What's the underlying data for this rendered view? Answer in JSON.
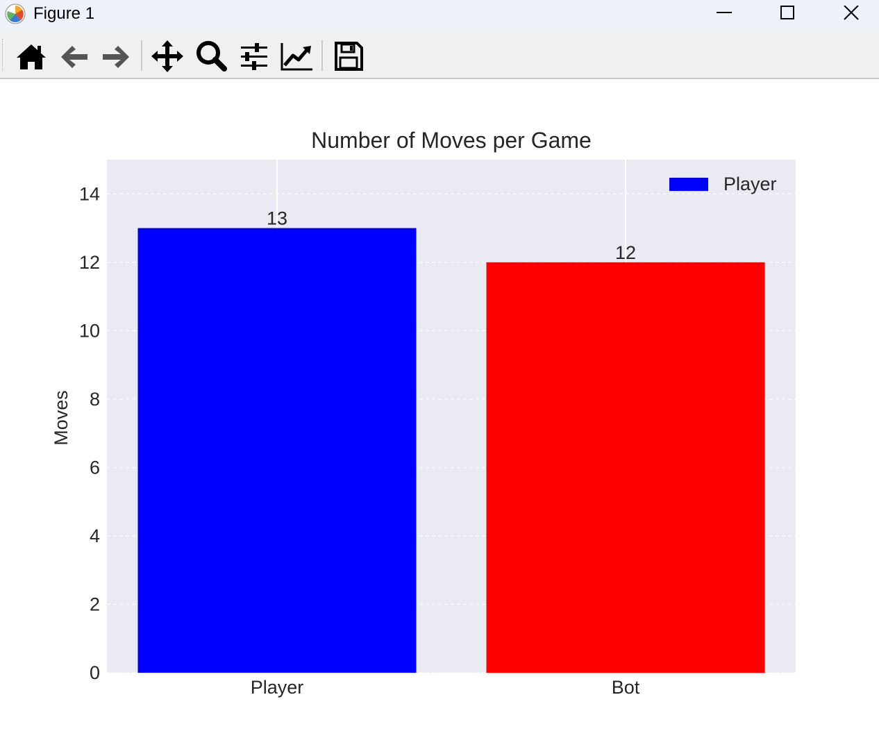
{
  "window": {
    "title": "Figure 1"
  },
  "toolbar": {
    "buttons": [
      {
        "name": "home-icon",
        "label": "Home"
      },
      {
        "name": "back-icon",
        "label": "Back"
      },
      {
        "name": "forward-icon",
        "label": "Forward"
      },
      {
        "name": "pan-icon",
        "label": "Pan"
      },
      {
        "name": "zoom-icon",
        "label": "Zoom"
      },
      {
        "name": "configure-subplots-icon",
        "label": "Subplots"
      },
      {
        "name": "edit-axis-icon",
        "label": "Customize"
      },
      {
        "name": "save-icon",
        "label": "Save"
      }
    ]
  },
  "chart_data": {
    "type": "bar",
    "title": "Number of Moves per Game",
    "xlabel": "",
    "ylabel": "Moves",
    "categories": [
      "Player",
      "Bot"
    ],
    "values": [
      13,
      12
    ],
    "value_labels": [
      "13",
      "12"
    ],
    "colors": [
      "#0000ff",
      "#ff0000"
    ],
    "ylim": [
      0,
      15
    ],
    "yticks": [
      "0",
      "2",
      "4",
      "6",
      "8",
      "10",
      "12",
      "14"
    ],
    "grid": "y-dashed",
    "background": "#eaeaf2",
    "legend": {
      "placement": "top-right",
      "entries": [
        {
          "label": "Player",
          "color": "#0000ff"
        }
      ]
    }
  }
}
